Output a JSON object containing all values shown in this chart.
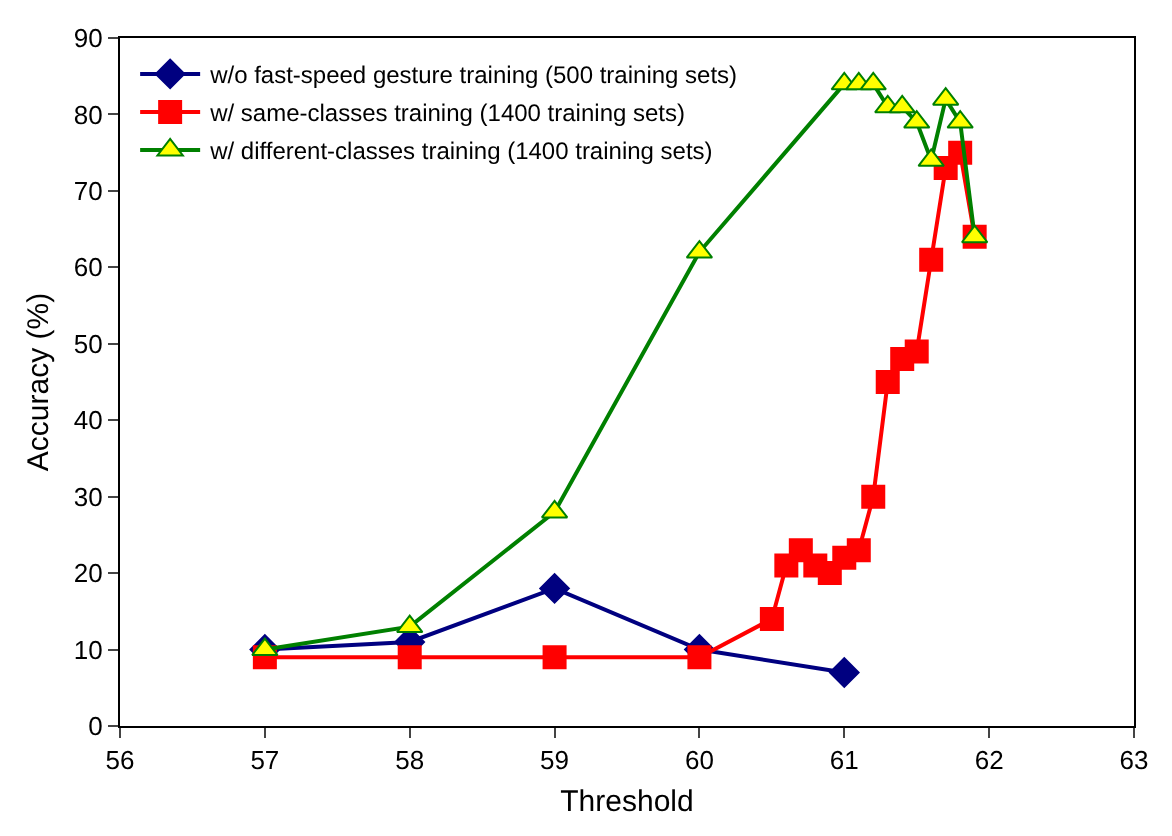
{
  "chart_data": {
    "type": "line",
    "xlabel": "Threshold",
    "ylabel": "Accuracy (%)",
    "xlim": [
      56,
      63
    ],
    "xticks": [
      56,
      57,
      58,
      59,
      60,
      61,
      62,
      63
    ],
    "ylim": [
      0,
      90
    ],
    "yticks": [
      0,
      10,
      20,
      30,
      40,
      50,
      60,
      70,
      80,
      90
    ],
    "legend": "top left",
    "series": [
      {
        "name": "w/o fast-speed gesture training (500 training sets)",
        "color": "#000080",
        "marker": "diamond",
        "x": [
          57,
          58,
          59,
          60,
          61
        ],
        "values": [
          10,
          11,
          18,
          10,
          7
        ]
      },
      {
        "name": "w/ same-classes training (1400 training sets)",
        "color": "#ff0000",
        "marker": "square",
        "x": [
          57,
          58,
          59,
          60,
          60.5,
          60.6,
          60.7,
          60.8,
          60.9,
          61,
          61.1,
          61.2,
          61.3,
          61.4,
          61.5,
          61.6,
          61.7,
          61.8,
          61.9
        ],
        "values": [
          9,
          9,
          9,
          9,
          14,
          21,
          23,
          21,
          20,
          22,
          23,
          30,
          45,
          48,
          49,
          61,
          73,
          75,
          64
        ]
      },
      {
        "name": "w/ different-classes training (1400 training sets)",
        "color": "#008000",
        "marker": "triangle",
        "colors": [
          "#ffff00",
          "#ffff00",
          "#ffff00",
          "#ffff00",
          "#ffff00",
          "#ffff00",
          "#ffff00",
          "#ffff00",
          "#ffff00",
          "#ffff00",
          "#ffff00",
          "#ffff00",
          "#ffff00",
          "#ffff00"
        ],
        "x": [
          57,
          58,
          59,
          60,
          61,
          61.1,
          61.2,
          61.3,
          61.4,
          61.5,
          61.6,
          61.7,
          61.8,
          61.9
        ],
        "values": [
          10,
          13,
          28,
          62,
          84,
          84,
          84,
          81,
          81,
          79,
          74,
          82,
          79,
          64
        ]
      }
    ]
  }
}
